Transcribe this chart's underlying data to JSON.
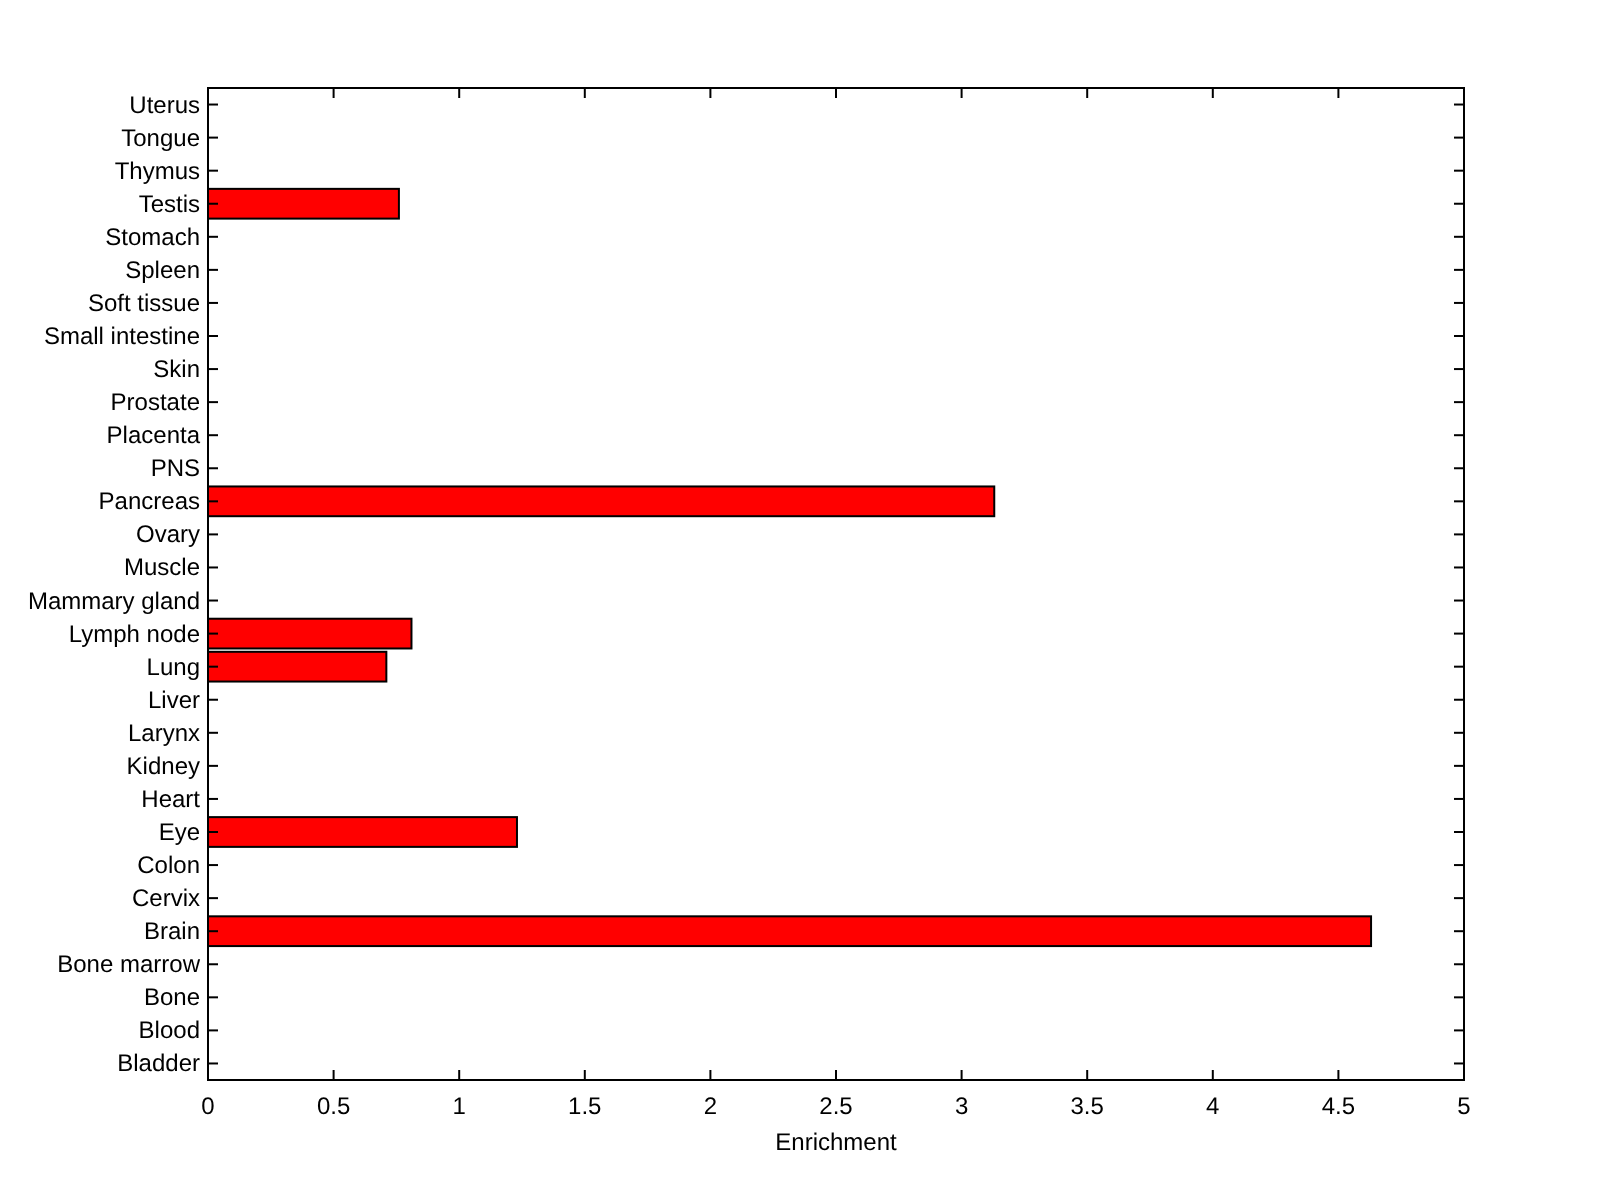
{
  "chart_data": {
    "type": "bar",
    "orientation": "horizontal",
    "xlabel": "Enrichment",
    "categories": [
      "Uterus",
      "Tongue",
      "Thymus",
      "Testis",
      "Stomach",
      "Spleen",
      "Soft tissue",
      "Small intestine",
      "Skin",
      "Prostate",
      "Placenta",
      "PNS",
      "Pancreas",
      "Ovary",
      "Muscle",
      "Mammary gland",
      "Lymph node",
      "Lung",
      "Liver",
      "Larynx",
      "Kidney",
      "Heart",
      "Eye",
      "Colon",
      "Cervix",
      "Brain",
      "Bone marrow",
      "Bone",
      "Blood",
      "Bladder"
    ],
    "values": [
      0,
      0,
      0,
      0.76,
      0,
      0,
      0,
      0,
      0,
      0,
      0,
      0,
      3.13,
      0,
      0,
      0,
      0.81,
      0.71,
      0,
      0,
      0,
      0,
      1.23,
      0,
      0,
      4.63,
      0,
      0,
      0,
      0
    ],
    "color": "#ff0000",
    "xlim": [
      0,
      5
    ],
    "xticks": [
      0,
      0.5,
      1,
      1.5,
      2,
      2.5,
      3,
      3.5,
      4,
      4.5,
      5
    ],
    "grid": false
  }
}
